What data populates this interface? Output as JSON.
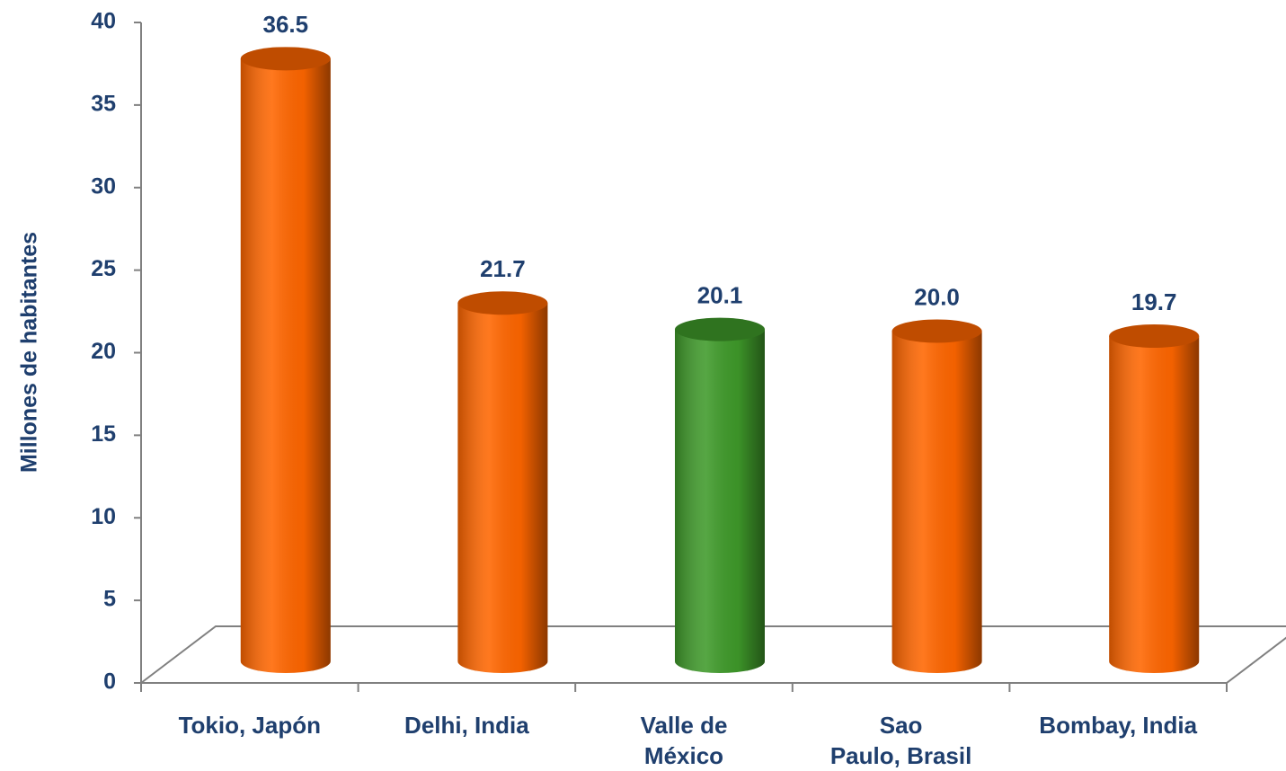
{
  "chart_data": {
    "type": "cylinder-bar",
    "y_axis_label": "Millones de habitantes",
    "categories": [
      "Tokio, Japón",
      "Delhi, India",
      "Valle de\nMéxico",
      "Sao\nPaulo, Brasil",
      "Bombay, India"
    ],
    "values": [
      36.5,
      21.7,
      20.1,
      20.0,
      19.7
    ],
    "value_labels": [
      "36.5",
      "21.7",
      "20.1",
      "20.0",
      "19.7"
    ],
    "colors": [
      "#ff6600",
      "#ff6600",
      "#3f9a2a",
      "#ff6600",
      "#ff6600"
    ],
    "ylim": [
      0,
      40
    ],
    "yticks": [
      0,
      5,
      10,
      15,
      20,
      25,
      30,
      35,
      40
    ]
  }
}
